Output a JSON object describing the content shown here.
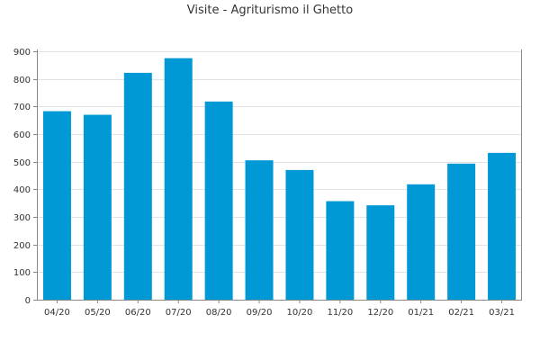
{
  "chart_data": {
    "type": "bar",
    "title": "Visite - Agriturismo il Ghetto",
    "xlabel": "",
    "ylabel": "",
    "categories": [
      "04/20",
      "05/20",
      "06/20",
      "07/20",
      "08/20",
      "09/20",
      "10/20",
      "11/20",
      "12/20",
      "01/21",
      "02/21",
      "03/21"
    ],
    "values": [
      683,
      670,
      822,
      875,
      718,
      505,
      470,
      357,
      342,
      418,
      493,
      532
    ],
    "ylim": [
      0,
      900
    ],
    "yticks": [
      0,
      100,
      200,
      300,
      400,
      500,
      600,
      700,
      800,
      900
    ],
    "grid": true,
    "legend": "none",
    "bar_color": "#0099d6"
  }
}
